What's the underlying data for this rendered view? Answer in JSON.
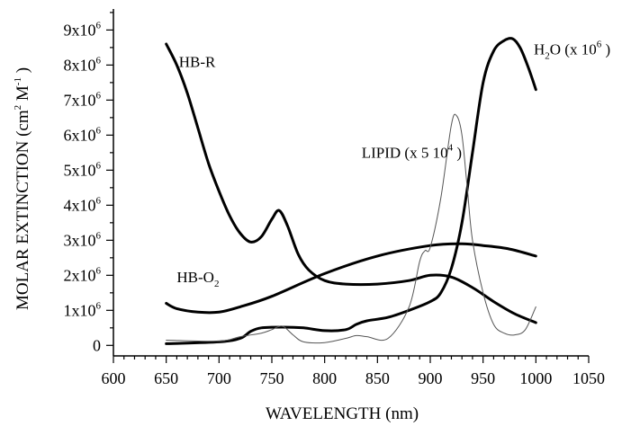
{
  "chart_data": {
    "type": "line",
    "title": "",
    "xlabel": "WAVELENGTH (nm)",
    "ylabel": {
      "pre": "MOLAR EXTINCTION (cm",
      "sup1": "2",
      "mid": " M",
      "sup2": "-1",
      "post": " )"
    },
    "xlim": [
      600,
      1050
    ],
    "ylim": [
      -300000,
      9600000
    ],
    "grid": false,
    "legend": "none",
    "x_ticks": [
      {
        "value": 600,
        "label": "600"
      },
      {
        "value": 650,
        "label": "650"
      },
      {
        "value": 700,
        "label": "700"
      },
      {
        "value": 750,
        "label": "750"
      },
      {
        "value": 800,
        "label": "800"
      },
      {
        "value": 850,
        "label": "850"
      },
      {
        "value": 900,
        "label": "900"
      },
      {
        "value": 950,
        "label": "950"
      },
      {
        "value": 1000,
        "label": "1000"
      },
      {
        "value": 1050,
        "label": "1050"
      }
    ],
    "y_ticks": [
      {
        "value": 0,
        "label": "0",
        "exp": ""
      },
      {
        "value": 1000000,
        "label": "1x10",
        "exp": "6"
      },
      {
        "value": 2000000,
        "label": "2x10",
        "exp": "6"
      },
      {
        "value": 3000000,
        "label": "3x10",
        "exp": "6"
      },
      {
        "value": 4000000,
        "label": "4x10",
        "exp": "6"
      },
      {
        "value": 5000000,
        "label": "5x10",
        "exp": "6"
      },
      {
        "value": 6000000,
        "label": "6x10",
        "exp": "6"
      },
      {
        "value": 7000000,
        "label": "7x10",
        "exp": "6"
      },
      {
        "value": 8000000,
        "label": "8x10",
        "exp": "6"
      },
      {
        "value": 9000000,
        "label": "9x10",
        "exp": "6"
      }
    ],
    "series": [
      {
        "name": "HB-R",
        "label_parts": {
          "pre": "HB-R",
          "sub": "",
          "post": "",
          "sup": "",
          "end": ""
        },
        "label_at": [
          662,
          7950000
        ],
        "stroke": "#000000",
        "width": 3,
        "x": [
          650,
          660,
          670,
          680,
          690,
          700,
          710,
          720,
          730,
          740,
          750,
          757,
          765,
          775,
          785,
          800,
          820,
          850,
          880,
          900,
          920,
          940,
          960,
          980,
          1000
        ],
        "y": [
          8600000,
          8000000,
          7200000,
          6200000,
          5200000,
          4400000,
          3700000,
          3200000,
          2950000,
          3100000,
          3600000,
          3850000,
          3400000,
          2600000,
          2150000,
          1850000,
          1750000,
          1750000,
          1850000,
          2000000,
          1950000,
          1650000,
          1250000,
          900000,
          650000
        ]
      },
      {
        "name": "HB-O2",
        "label_parts": {
          "pre": "HB-O",
          "sub": "2",
          "post": "",
          "sup": "",
          "end": ""
        },
        "label_at": [
          660,
          1800000
        ],
        "stroke": "#000000",
        "width": 3,
        "x": [
          650,
          660,
          680,
          700,
          720,
          750,
          800,
          850,
          900,
          930,
          950,
          975,
          1000
        ],
        "y": [
          1200000,
          1050000,
          950000,
          950000,
          1100000,
          1400000,
          2050000,
          2550000,
          2850000,
          2900000,
          2850000,
          2750000,
          2550000
        ]
      },
      {
        "name": "H2O (x 10^6)",
        "label_parts": {
          "pre": "H",
          "sub": "2",
          "post": "O (x 10",
          "sup": "6",
          "end": " )"
        },
        "label_at": [
          998,
          8300000
        ],
        "stroke": "#000000",
        "width": 3,
        "x": [
          650,
          700,
          720,
          730,
          740,
          760,
          780,
          800,
          820,
          830,
          840,
          860,
          880,
          900,
          910,
          920,
          930,
          940,
          950,
          960,
          970,
          978,
          985,
          992,
          1000
        ],
        "y": [
          50000,
          100000,
          200000,
          400000,
          500000,
          520000,
          500000,
          420000,
          450000,
          600000,
          700000,
          800000,
          1000000,
          1250000,
          1500000,
          2200000,
          3500000,
          5500000,
          7500000,
          8400000,
          8700000,
          8750000,
          8500000,
          8000000,
          7300000
        ]
      },
      {
        "name": "LIPID (x 5 10^4)",
        "label_parts": {
          "pre": "LIPID (x 5 10",
          "sub": "",
          "post": "",
          "sup": "4",
          "end": " )"
        },
        "label_at": [
          835,
          5350000
        ],
        "stroke": "#555555",
        "width": 1,
        "x": [
          650,
          700,
          720,
          740,
          750,
          760,
          770,
          780,
          800,
          820,
          830,
          840,
          860,
          880,
          890,
          895,
          900,
          910,
          920,
          925,
          930,
          935,
          940,
          950,
          960,
          970,
          980,
          990,
          1000
        ],
        "y": [
          150000,
          120000,
          250000,
          350000,
          450000,
          550000,
          300000,
          100000,
          80000,
          200000,
          280000,
          250000,
          200000,
          1100000,
          2400000,
          2700000,
          2800000,
          4200000,
          6300000,
          6550000,
          6000000,
          4500000,
          3000000,
          1500000,
          600000,
          350000,
          300000,
          450000,
          1100000
        ]
      }
    ]
  }
}
